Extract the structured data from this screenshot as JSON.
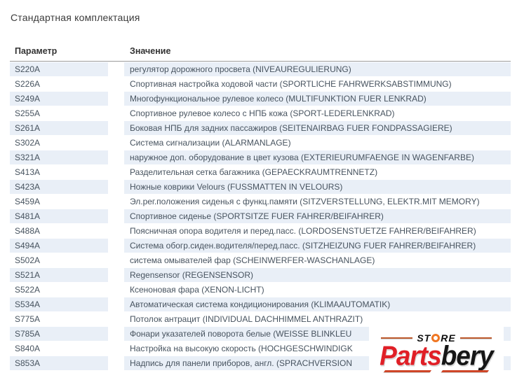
{
  "page": {
    "title": "Стандартная комплектация"
  },
  "table": {
    "columns": {
      "param": "Параметр",
      "value": "Значение"
    },
    "rows": [
      {
        "code": "S220A",
        "value": "регулятор дорожного просвета (NIVEAUREGULIERUNG)"
      },
      {
        "code": "S226A",
        "value": "Спортивная настройка ходовой части (SPORTLICHE FAHRWERKSABSTIMMUNG)"
      },
      {
        "code": "S249A",
        "value": "Многофункциональное рулевое колесо (MULTIFUNKTION FUER LENKRAD)"
      },
      {
        "code": "S255A",
        "value": "Спортивное рулевое колесо с НПБ кожа (SPORT-LEDERLENKRAD)"
      },
      {
        "code": "S261A",
        "value": "Боковая НПБ для задних пассажиров (SEITENAIRBAG FUER FONDPASSAGIERE)"
      },
      {
        "code": "S302A",
        "value": "Система сигнализации (ALARMANLAGE)"
      },
      {
        "code": "S321A",
        "value": "наружное доп. оборудование в цвет кузова (EXTERIEURUMFAENGE IN WAGENFARBE)"
      },
      {
        "code": "S413A",
        "value": "Разделительная сетка багажника (GEPAECKRAUMTRENNETZ)"
      },
      {
        "code": "S423A",
        "value": "Ножные коврики Velours (FUSSMATTEN IN VELOURS)"
      },
      {
        "code": "S459A",
        "value": "Эл.рег.положения сиденья с функц.памяти (SITZVERSTELLUNG, ELEKTR.MIT MEMORY)"
      },
      {
        "code": "S481A",
        "value": "Спортивное сиденье (SPORTSITZE FUER FAHRER/BEIFAHRER)"
      },
      {
        "code": "S488A",
        "value": "Поясничная опора водителя и перед.пасс. (LORDOSENSTUETZE FAHRER/BEIFAHRER)"
      },
      {
        "code": "S494A",
        "value": "Система обогр.сиден.водителя/перед.пасс. (SITZHEIZUNG FUER FAHRER/BEIFAHRER)"
      },
      {
        "code": "S502A",
        "value": "система омывателей фар (SCHEINWERFER-WASCHANLAGE)"
      },
      {
        "code": "S521A",
        "value": "Regensensor (REGENSENSOR)"
      },
      {
        "code": "S522A",
        "value": "Ксеноновая фара (XENON-LICHT)"
      },
      {
        "code": "S534A",
        "value": "Автоматическая система кондиционирования (KLIMAAUTOMATIK)"
      },
      {
        "code": "S775A",
        "value": "Потолок антрацит (INDIVIDUAL DACHHIMMEL ANTHRAZIT)"
      },
      {
        "code": "S785A",
        "value": "Фонари указателей поворота белые (WEISSE BLINKLEU"
      },
      {
        "code": "S840A",
        "value": "Настройка на высокую скорость (HOCHGESCHWINDIGK"
      },
      {
        "code": "S853A",
        "value": "Надпись для панели приборов, англ. (SPRACHVERSION"
      }
    ]
  },
  "logo": {
    "store_left": "ST",
    "store_right": "RE",
    "brand_left": "Parts",
    "brand_right": "bery"
  },
  "colors": {
    "stripe_blue": "#e9eff7",
    "brand_red": "#e01f26",
    "ring_orange": "#ef7622",
    "accent_orange": "#bf5a2e",
    "swoosh_red": "#cf4628"
  }
}
